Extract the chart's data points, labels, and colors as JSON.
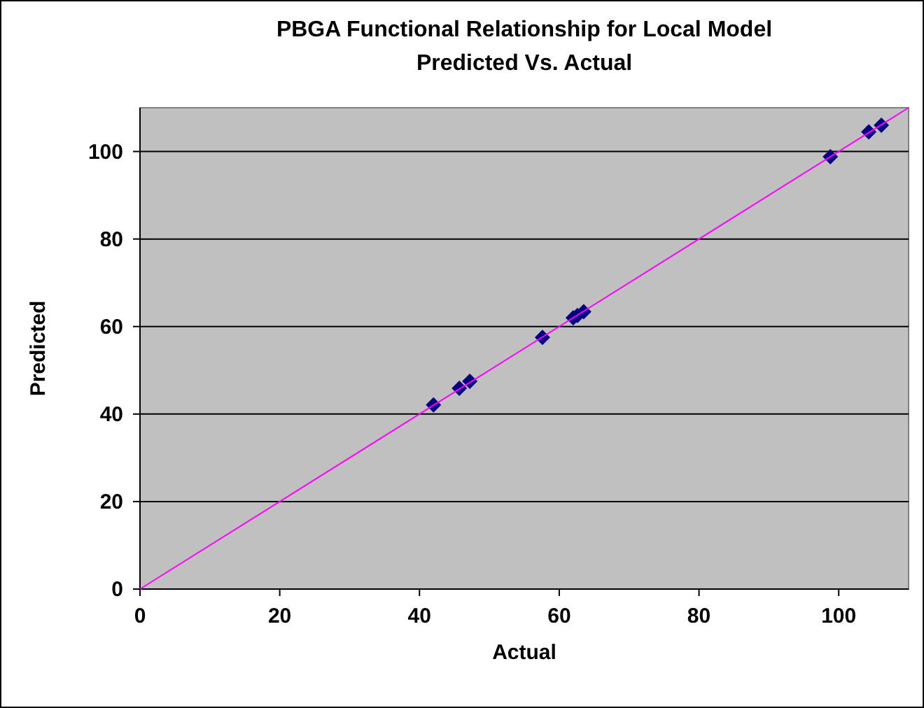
{
  "chart_data": {
    "type": "scatter",
    "title": "PBGA Functional Relationship for Local Model",
    "subtitle": "Predicted Vs. Actual",
    "xlabel": "Actual",
    "ylabel": "Predicted",
    "xlim": [
      0,
      110
    ],
    "xticks": [
      0,
      20,
      40,
      60,
      80,
      100
    ],
    "ylim": [
      0,
      110
    ],
    "yticks": [
      0,
      20,
      40,
      60,
      80,
      100
    ],
    "grid": "y",
    "marker": "diamond",
    "series": [
      {
        "color": "#000080",
        "x": [
          42,
          45.7,
          47.2,
          57.6,
          62,
          62.6,
          63.5,
          98.8,
          104.3,
          106.1
        ],
        "values": [
          42.1,
          45.9,
          47.5,
          57.5,
          62,
          62.5,
          63.4,
          98.8,
          104.5,
          106
        ]
      },
      {
        "type": "line",
        "color": "#ff00ff",
        "marker": "none",
        "x": [
          0,
          110
        ],
        "values": [
          0,
          110
        ]
      }
    ]
  }
}
